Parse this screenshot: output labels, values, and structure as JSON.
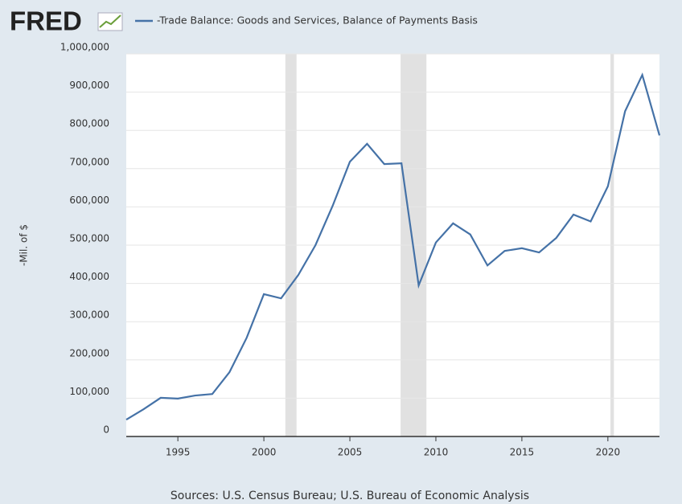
{
  "chart_data": {
    "type": "line",
    "logo": "FRED",
    "y_axis_label": "-Mil. of $",
    "source": "Sources: U.S. Census Bureau; U.S. Bureau of Economic Analysis",
    "x": [
      1992,
      1993,
      1994,
      1995,
      1996,
      1997,
      1998,
      1999,
      2000,
      2001,
      2002,
      2003,
      2004,
      2005,
      2006,
      2007,
      2008,
      2009,
      2010,
      2011,
      2012,
      2013,
      2014,
      2015,
      2016,
      2017,
      2018,
      2019,
      2020,
      2021,
      2022,
      2023
    ],
    "series": [
      {
        "name": "-Trade Balance: Goods and Services, Balance of Payments Basis",
        "color": "#4572a7",
        "values": [
          44000,
          71000,
          101000,
          99000,
          107000,
          111000,
          168000,
          258000,
          372000,
          361000,
          422000,
          500000,
          603000,
          718000,
          765000,
          712000,
          714000,
          395000,
          507000,
          557000,
          528000,
          447000,
          485000,
          492000,
          481000,
          519000,
          580000,
          562000,
          654000,
          850000,
          945000,
          787000
        ]
      }
    ],
    "recessions": [
      [
        2001.25,
        2001.9
      ],
      [
        2007.95,
        2009.45
      ],
      [
        2020.15,
        2020.35
      ]
    ],
    "recession_color": "#e1e1e1",
    "xlim": [
      1992,
      2023
    ],
    "xticks": [
      1995,
      2000,
      2005,
      2010,
      2015,
      2020
    ],
    "ylim": [
      0,
      1000000
    ],
    "yticks": [
      0,
      {
        "value": 100000,
        "label": "100,000"
      },
      {
        "value": 200000,
        "label": "200,000"
      },
      {
        "value": 300000,
        "label": "300,000"
      },
      {
        "value": 400000,
        "label": "400,000"
      },
      {
        "value": 500000,
        "label": "500,000"
      },
      {
        "value": 600000,
        "label": "600,000"
      },
      {
        "value": 700000,
        "label": "700,000"
      },
      {
        "value": 800000,
        "label": "800,000"
      },
      {
        "value": 900000,
        "label": "900,000"
      },
      {
        "value": 1000000,
        "label": "1,000,000"
      }
    ],
    "grid": true
  }
}
